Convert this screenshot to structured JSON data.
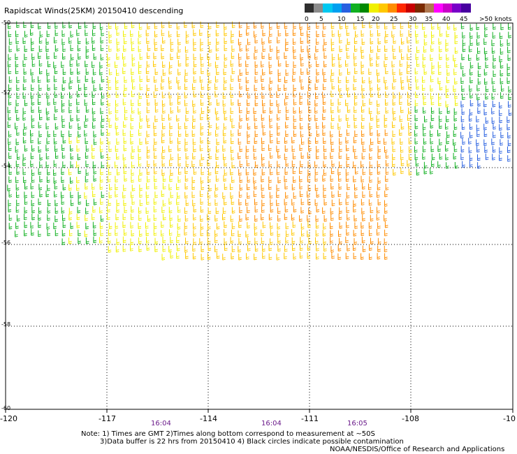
{
  "title": "Rapidscat Winds(25KM) 20150410 descending",
  "legend": {
    "colors": [
      "#2f2f2f",
      "#8c8c8c",
      "#00c8f0",
      "#00a0f0",
      "#2860e0",
      "#10b020",
      "#008800",
      "#f0f000",
      "#ffc800",
      "#ff8c00",
      "#ff2800",
      "#c80000",
      "#7a2a00",
      "#b07850",
      "#ff00ff",
      "#c800c8",
      "#7800c8",
      "#4800a0"
    ],
    "labels": [
      "0",
      "5",
      "10",
      "15",
      "20",
      "25",
      "30",
      "35",
      "40",
      "45",
      ">50 knots"
    ]
  },
  "axes": {
    "lon_labels": [
      "-120",
      "-117",
      "-114",
      "-111",
      "-108",
      "-10"
    ],
    "lat_labels": [
      "-50",
      "-52",
      "-54",
      "-56",
      "-58",
      "-60"
    ]
  },
  "times": [
    "16:04",
    "16:04",
    "16:05"
  ],
  "notes": {
    "line1": "Note: 1) Times are GMT 2)Times along bottom correspond to measurement at ~50S",
    "line2": "3)Data buffer is 22 hrs from 20150410 4) Black circles indicate possible contamination",
    "credit": "NOAA/NESDIS/Office of Research and Applications"
  }
}
